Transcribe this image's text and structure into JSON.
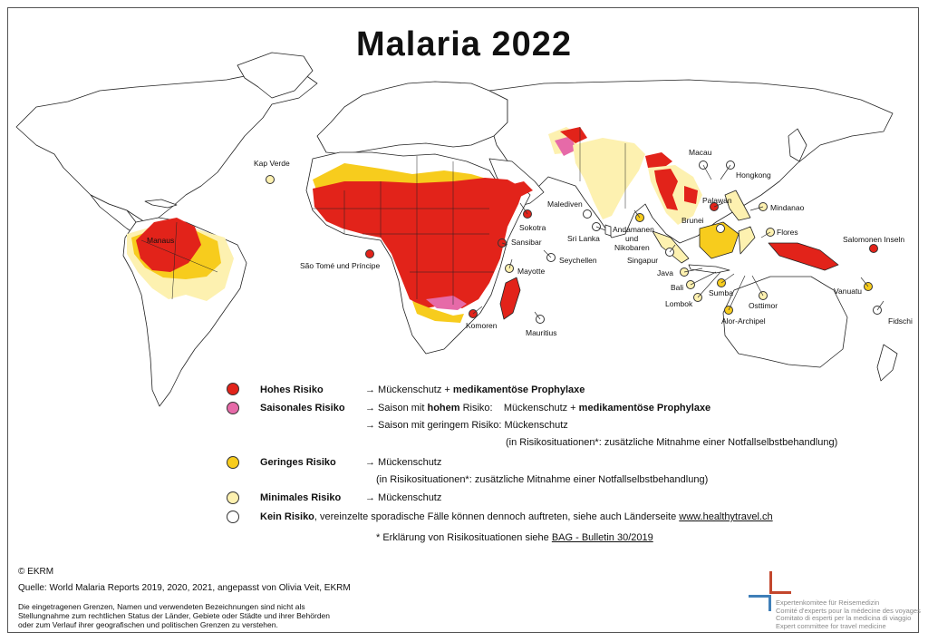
{
  "title": "Malaria 2022",
  "colors": {
    "high": "#e2231a",
    "seasonal": "#e66aa8",
    "low": "#f7cc1d",
    "minimal": "#fdf1b0",
    "none": "#ffffff",
    "border": "#222222",
    "logo_blue": "#3f7fb8",
    "logo_red": "#c3472d"
  },
  "map_labels": {
    "kap_verde": "Kap Verde",
    "manaus": "Manaus",
    "sao_tome": "São Tomé und Príncipe",
    "sokotra": "Sokotra",
    "sansibar": "Sansibar",
    "seychellen": "Seychellen",
    "mayotte": "Mayotte",
    "komoren": "Komoren",
    "mauritius": "Mauritius",
    "malediven": "Malediven",
    "sri_lanka": "Sri Lanka",
    "andamanen": "Andamanen",
    "und": "und",
    "nikobaren": "Nikobaren",
    "singapur": "Singapur",
    "macau": "Macau",
    "hongkong": "Hongkong",
    "palawan": "Palawan",
    "mindanao": "Mindanao",
    "brunei": "Brunei",
    "flores": "Flores",
    "java": "Java",
    "bali": "Bali",
    "lombok": "Lombok",
    "sumba": "Sumba",
    "osttimor": "Osttimor",
    "alor_archipel": "Alor-Archipel",
    "salomonen": "Salomonen Inseln",
    "vanuatu": "Vanuatu",
    "fidschi": "Fidschi"
  },
  "legend": {
    "high": {
      "name": "Hohes Risiko",
      "arrow": "→ Mückenschutz + ",
      "bold": "medikamentöse Prophylaxe"
    },
    "seasonal": {
      "name": "Saisonales Risiko",
      "line1_pre": "→ Saison mit ",
      "line1_bold": "hohem",
      "line1_mid": " Risiko:    Mückenschutz + ",
      "line1_bold2": "medikamentöse Prophylaxe",
      "line2": "→ Saison mit geringem Risiko: Mückenschutz",
      "line3": "(in Risikosituationen*: zusätzliche Mitnahme einer Notfallselbstbehandlung)"
    },
    "low": {
      "name": "Geringes Risiko",
      "line1": "→ Mückenschutz",
      "line2": "(in Risikosituationen*: zusätzliche Mitnahme einer Notfallselbstbehandlung)"
    },
    "minimal": {
      "name": "Minimales Risiko",
      "line1": "→ Mückenschutz"
    },
    "none": {
      "name": "Kein Risiko",
      "text": ", vereinzelte sporadische Fälle können dennoch auftreten, siehe auch Länderseite ",
      "link": "www.healthytravel.ch"
    },
    "footnote_pre": "* Erklärung von Risikosituationen siehe ",
    "footnote_link": "BAG - Bulletin 30/2019"
  },
  "footer": {
    "copyright": "© EKRM",
    "source": "Quelle: World Malaria Reports 2019, 2020, 2021, angepasst von Olivia Veit, EKRM",
    "disclaimer": "Die eingetragenen Grenzen, Namen und verwendeten Bezeichnungen sind nicht als Stellungnahme zum rechtlichen Status der Länder, Gebiete oder Städte und ihrer Behörden oder zum Verlauf ihrer geografischen und politischen Grenzen zu verstehen."
  },
  "logo": {
    "de": "Expertenkomitee für Reisemedizin",
    "fr": "Comité d'experts pour la médecine des voyages",
    "it": "Comitato di esperti per la medicina di viaggio",
    "en": "Expert committee for travel medicine"
  }
}
